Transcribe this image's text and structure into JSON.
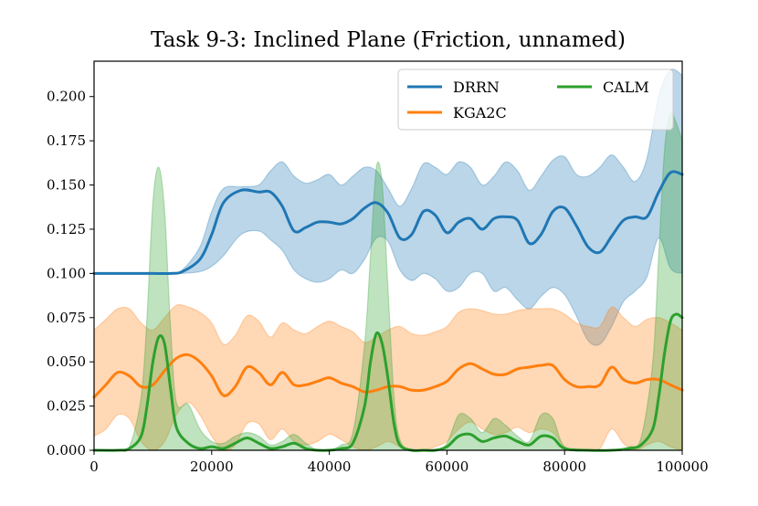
{
  "chart_data": {
    "type": "line",
    "title": "Task 9-3: Inclined Plane (Friction, unnamed)",
    "xlabel": "",
    "ylabel": "",
    "xlim": [
      0,
      100000
    ],
    "ylim": [
      0.0,
      0.22
    ],
    "xticks": [
      0,
      20000,
      40000,
      60000,
      80000,
      100000
    ],
    "xtick_labels": [
      "0",
      "20000",
      "40000",
      "60000",
      "80000",
      "100000"
    ],
    "yticks": [
      0.0,
      0.025,
      0.05,
      0.075,
      0.1,
      0.125,
      0.15,
      0.175,
      0.2
    ],
    "ytick_labels": [
      "0.000",
      "0.025",
      "0.050",
      "0.075",
      "0.100",
      "0.125",
      "0.150",
      "0.175",
      "0.200"
    ],
    "grid": false,
    "legend_position": "top-right",
    "series": [
      {
        "name": "DRRN",
        "color": "#1f77b4",
        "x": [
          0,
          5000,
          10000,
          13000,
          15000,
          18000,
          20000,
          22000,
          25000,
          28000,
          30000,
          32000,
          34000,
          36000,
          38000,
          40000,
          42000,
          44000,
          46000,
          48000,
          50000,
          52000,
          54000,
          56000,
          58000,
          60000,
          62000,
          64000,
          66000,
          68000,
          70000,
          72000,
          74000,
          76000,
          78000,
          80000,
          82000,
          84000,
          86000,
          88000,
          90000,
          92000,
          94000,
          96000,
          98000,
          100000
        ],
        "mean": [
          0.1,
          0.1,
          0.1,
          0.1,
          0.101,
          0.108,
          0.122,
          0.14,
          0.147,
          0.146,
          0.146,
          0.138,
          0.124,
          0.126,
          0.129,
          0.129,
          0.128,
          0.131,
          0.137,
          0.14,
          0.134,
          0.12,
          0.122,
          0.135,
          0.133,
          0.123,
          0.129,
          0.131,
          0.125,
          0.131,
          0.132,
          0.13,
          0.117,
          0.122,
          0.135,
          0.137,
          0.127,
          0.115,
          0.112,
          0.121,
          0.13,
          0.132,
          0.132,
          0.146,
          0.157,
          0.156
        ],
        "lower": [
          0.1,
          0.1,
          0.1,
          0.1,
          0.1,
          0.101,
          0.104,
          0.11,
          0.122,
          0.124,
          0.119,
          0.113,
          0.102,
          0.097,
          0.095,
          0.097,
          0.102,
          0.1,
          0.108,
          0.12,
          0.118,
          0.102,
          0.096,
          0.1,
          0.097,
          0.09,
          0.092,
          0.1,
          0.1,
          0.09,
          0.092,
          0.085,
          0.08,
          0.087,
          0.092,
          0.088,
          0.076,
          0.062,
          0.06,
          0.07,
          0.084,
          0.09,
          0.098,
          0.12,
          0.103,
          0.1
        ],
        "upper": [
          0.1,
          0.1,
          0.1,
          0.1,
          0.102,
          0.115,
          0.135,
          0.148,
          0.149,
          0.15,
          0.158,
          0.163,
          0.155,
          0.151,
          0.153,
          0.156,
          0.15,
          0.155,
          0.16,
          0.158,
          0.148,
          0.138,
          0.148,
          0.162,
          0.16,
          0.156,
          0.163,
          0.16,
          0.15,
          0.155,
          0.163,
          0.158,
          0.147,
          0.155,
          0.164,
          0.166,
          0.156,
          0.155,
          0.16,
          0.167,
          0.16,
          0.152,
          0.165,
          0.2,
          0.215,
          0.212
        ]
      },
      {
        "name": "KGA2C",
        "color": "#ff7f0e",
        "x": [
          0,
          2000,
          4000,
          6000,
          8000,
          10000,
          12000,
          14000,
          16000,
          18000,
          20000,
          22000,
          24000,
          26000,
          28000,
          30000,
          32000,
          34000,
          36000,
          38000,
          40000,
          42000,
          44000,
          46000,
          48000,
          50000,
          52000,
          54000,
          56000,
          58000,
          60000,
          62000,
          64000,
          66000,
          68000,
          70000,
          72000,
          74000,
          76000,
          78000,
          80000,
          82000,
          84000,
          86000,
          88000,
          90000,
          92000,
          94000,
          96000,
          98000,
          100000
        ],
        "mean": [
          0.03,
          0.037,
          0.044,
          0.042,
          0.036,
          0.037,
          0.045,
          0.052,
          0.054,
          0.05,
          0.042,
          0.031,
          0.036,
          0.047,
          0.044,
          0.037,
          0.044,
          0.037,
          0.037,
          0.039,
          0.041,
          0.038,
          0.036,
          0.033,
          0.034,
          0.036,
          0.036,
          0.034,
          0.034,
          0.036,
          0.039,
          0.046,
          0.049,
          0.046,
          0.043,
          0.043,
          0.046,
          0.047,
          0.048,
          0.048,
          0.04,
          0.036,
          0.036,
          0.037,
          0.047,
          0.04,
          0.038,
          0.04,
          0.04,
          0.037,
          0.034
        ],
        "lower": [
          0.008,
          0.012,
          0.02,
          0.018,
          0.005,
          0.0,
          0.005,
          0.02,
          0.027,
          0.02,
          0.008,
          0.0,
          0.003,
          0.015,
          0.015,
          0.006,
          0.012,
          0.005,
          0.003,
          0.005,
          0.009,
          0.006,
          0.002,
          0.0,
          0.002,
          0.005,
          0.002,
          0.0,
          0.0,
          0.002,
          0.005,
          0.012,
          0.016,
          0.012,
          0.009,
          0.01,
          0.013,
          0.01,
          0.012,
          0.01,
          0.002,
          0.0,
          0.0,
          0.001,
          0.012,
          0.004,
          0.0,
          0.003,
          0.005,
          0.002,
          0.0
        ],
        "upper": [
          0.068,
          0.074,
          0.08,
          0.08,
          0.072,
          0.068,
          0.075,
          0.082,
          0.081,
          0.078,
          0.072,
          0.06,
          0.065,
          0.076,
          0.073,
          0.064,
          0.072,
          0.068,
          0.066,
          0.07,
          0.073,
          0.07,
          0.067,
          0.061,
          0.064,
          0.068,
          0.07,
          0.066,
          0.065,
          0.067,
          0.07,
          0.078,
          0.08,
          0.079,
          0.077,
          0.077,
          0.079,
          0.08,
          0.08,
          0.08,
          0.077,
          0.072,
          0.07,
          0.07,
          0.081,
          0.075,
          0.07,
          0.074,
          0.075,
          0.072,
          0.068
        ]
      },
      {
        "name": "CALM",
        "color": "#2ca02c",
        "x": [
          0,
          4000,
          6000,
          8000,
          9000,
          10000,
          11000,
          12000,
          13000,
          14000,
          16000,
          18000,
          20000,
          22000,
          24000,
          26000,
          28000,
          30000,
          32000,
          34000,
          36000,
          38000,
          40000,
          42000,
          44000,
          46000,
          47000,
          48000,
          49000,
          50000,
          51000,
          52000,
          54000,
          56000,
          58000,
          60000,
          62000,
          64000,
          66000,
          68000,
          70000,
          72000,
          74000,
          76000,
          78000,
          80000,
          84000,
          88000,
          91000,
          93000,
          95000,
          96000,
          97000,
          98000,
          99000,
          100000
        ],
        "mean": [
          0.0,
          0.0,
          0.001,
          0.008,
          0.025,
          0.05,
          0.064,
          0.06,
          0.035,
          0.013,
          0.004,
          0.001,
          0.002,
          0.001,
          0.004,
          0.007,
          0.004,
          0.001,
          0.002,
          0.004,
          0.001,
          0.0,
          0.0,
          0.001,
          0.004,
          0.025,
          0.05,
          0.066,
          0.06,
          0.04,
          0.015,
          0.003,
          0.0,
          0.0,
          0.0,
          0.002,
          0.008,
          0.009,
          0.005,
          0.007,
          0.008,
          0.005,
          0.003,
          0.008,
          0.007,
          0.001,
          0.0,
          0.0,
          0.001,
          0.003,
          0.012,
          0.03,
          0.055,
          0.073,
          0.077,
          0.075
        ],
        "lower": [
          0.0,
          0.0,
          0.0,
          0.0,
          0.0,
          0.0,
          0.0,
          0.0,
          0.0,
          0.0,
          0.0,
          0.0,
          0.0,
          0.0,
          0.0,
          0.0,
          0.0,
          0.0,
          0.0,
          0.0,
          0.0,
          0.0,
          0.0,
          0.0,
          0.0,
          0.0,
          0.0,
          0.0,
          0.0,
          0.0,
          0.0,
          0.0,
          0.0,
          0.0,
          0.0,
          0.0,
          0.0,
          0.0,
          0.0,
          0.0,
          0.0,
          0.0,
          0.0,
          0.0,
          0.0,
          0.0,
          0.0,
          0.0,
          0.0,
          0.0,
          0.0,
          0.0,
          0.0,
          0.0,
          0.0,
          0.0
        ],
        "upper": [
          0.0,
          0.0,
          0.002,
          0.03,
          0.075,
          0.14,
          0.16,
          0.135,
          0.07,
          0.027,
          0.026,
          0.012,
          0.005,
          0.004,
          0.008,
          0.01,
          0.008,
          0.003,
          0.005,
          0.009,
          0.004,
          0.0,
          0.0,
          0.003,
          0.01,
          0.06,
          0.11,
          0.16,
          0.15,
          0.09,
          0.03,
          0.006,
          0.0,
          0.0,
          0.0,
          0.004,
          0.02,
          0.018,
          0.01,
          0.018,
          0.014,
          0.008,
          0.005,
          0.02,
          0.018,
          0.002,
          0.0,
          0.0,
          0.002,
          0.007,
          0.05,
          0.11,
          0.17,
          0.19,
          0.185,
          0.175
        ]
      }
    ]
  }
}
